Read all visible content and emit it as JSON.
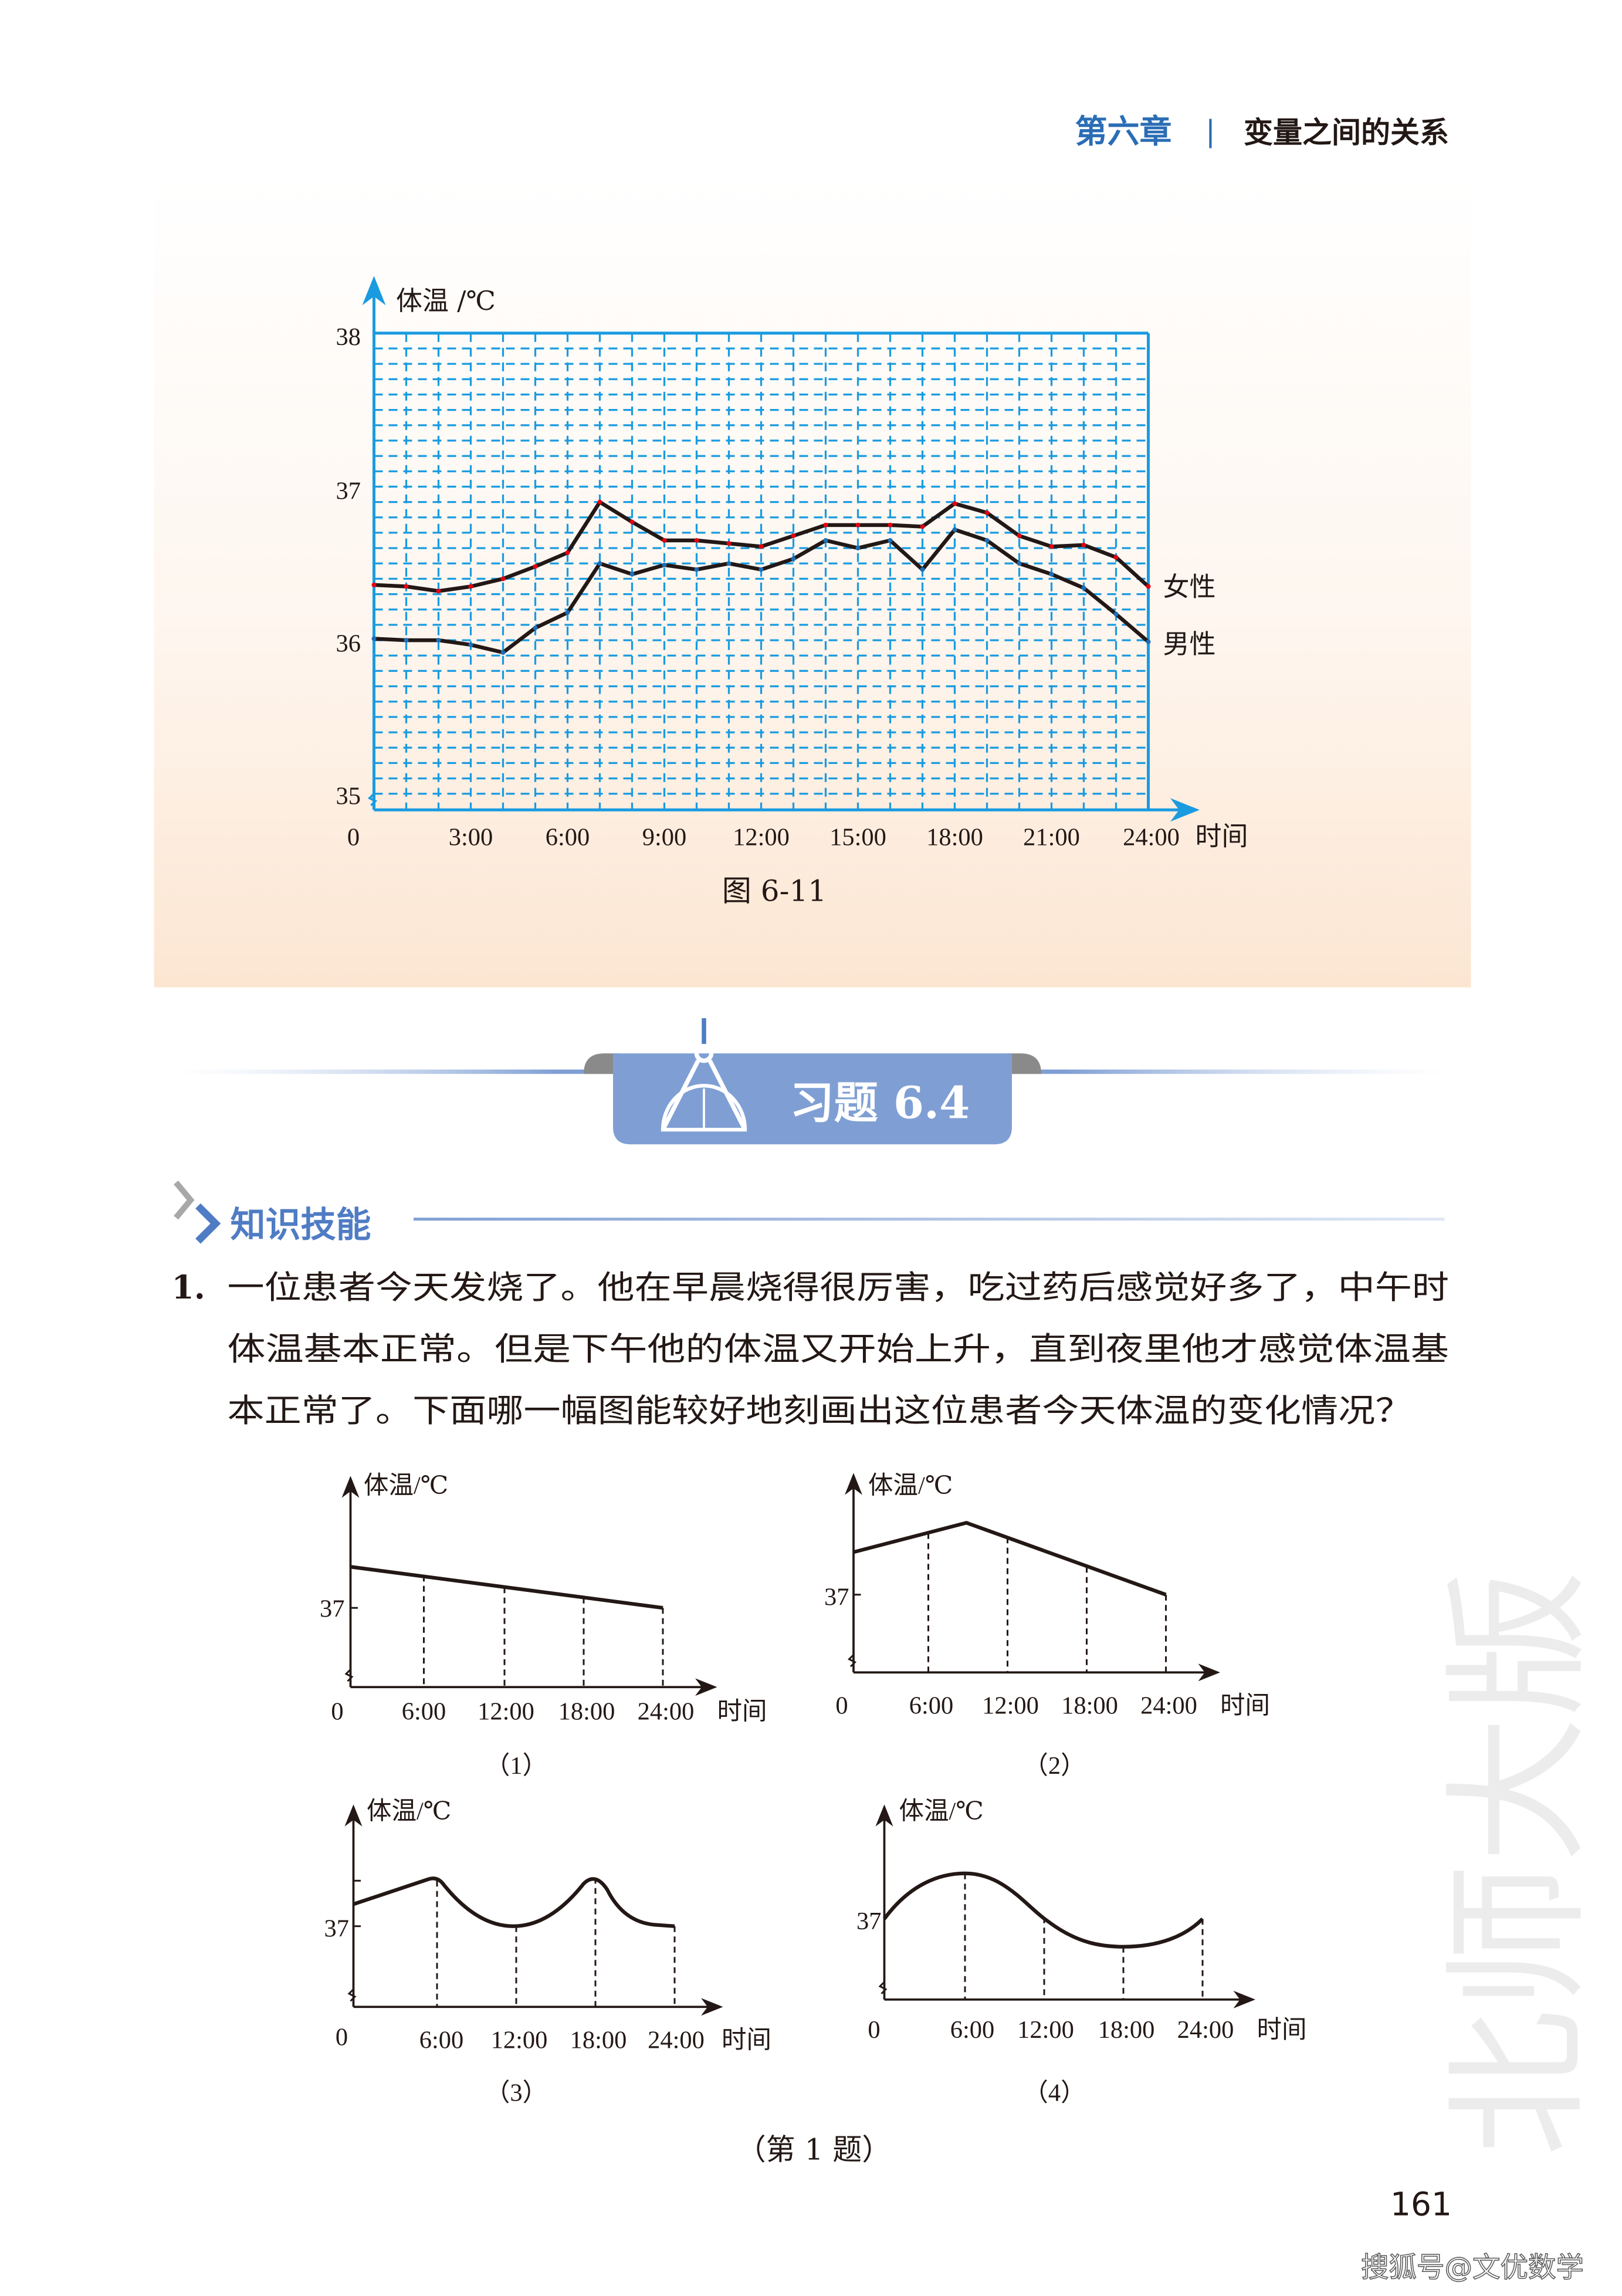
{
  "header": {
    "chapter": "第六章",
    "separator": "|",
    "title": "变量之间的关系"
  },
  "figure": {
    "caption": "图 6-11"
  },
  "chart_data": {
    "type": "line",
    "ylabel": "体温 /℃",
    "xlabel": "时间",
    "x_tick_labels": [
      "0",
      "3:00",
      "6:00",
      "9:00",
      "12:00",
      "15:00",
      "18:00",
      "21:00",
      "24:00"
    ],
    "y_tick_labels": [
      "35",
      "36",
      "37",
      "38"
    ],
    "ylim": [
      35,
      38
    ],
    "xlim_hours": [
      0,
      24
    ],
    "grid": true,
    "x_hours": [
      0,
      1,
      2,
      3,
      4,
      5,
      6,
      7,
      8,
      9,
      10,
      11,
      12,
      13,
      14,
      15,
      16,
      17,
      18,
      19,
      20,
      21,
      22,
      23,
      24
    ],
    "series": [
      {
        "name": "女性",
        "color": "#231815",
        "marker_color": "#e60012",
        "values": [
          36.36,
          36.35,
          36.32,
          36.35,
          36.4,
          36.48,
          36.57,
          36.9,
          36.77,
          36.65,
          36.65,
          36.63,
          36.61,
          36.68,
          36.75,
          36.75,
          36.75,
          36.74,
          36.89,
          36.83,
          36.68,
          36.61,
          36.62,
          36.54,
          36.35
        ]
      },
      {
        "name": "男性",
        "color": "#231815",
        "marker_color": "#1d6fb8",
        "values": [
          36.01,
          36.0,
          36.0,
          35.97,
          35.92,
          36.08,
          36.18,
          36.5,
          36.43,
          36.49,
          36.46,
          36.5,
          36.46,
          36.53,
          36.65,
          36.6,
          36.65,
          36.46,
          36.72,
          36.65,
          36.5,
          36.43,
          36.34,
          36.17,
          35.99
        ]
      }
    ]
  },
  "exercise": {
    "banner_title": "习题 6.4",
    "section_title": "知识技能",
    "q1_number": "1.",
    "q1_lines": [
      "一位患者今天发烧了。他在早晨烧得很厉害，吃过药后感觉好多了，中午时",
      "体温基本正常。但是下午他的体温又开始上升，直到夜里他才感觉体温基",
      "本正常了。下面哪一幅图能较好地刻画出这位患者今天体温的变化情况？"
    ],
    "graph_ylabel": "体温/℃",
    "graph_xlabel": "时间",
    "graph_ytick": "37",
    "graph_xticks": [
      "0",
      "6:00",
      "12:00",
      "18:00",
      "24:00"
    ],
    "graph_labels": [
      "（1）",
      "（2）",
      "（3）",
      "（4）"
    ],
    "caption": "（第 1 题）"
  },
  "page_number": "161",
  "watermarks": {
    "publisher": "北师大版",
    "source": "搜狐号@文优数学"
  },
  "colors": {
    "grid": "#1a9be0",
    "chapter_blue": "#2a6db5",
    "banner": "#7f9fd4",
    "section_blue": "#4f7cc4",
    "panel_bottom": "#fce6d2"
  }
}
